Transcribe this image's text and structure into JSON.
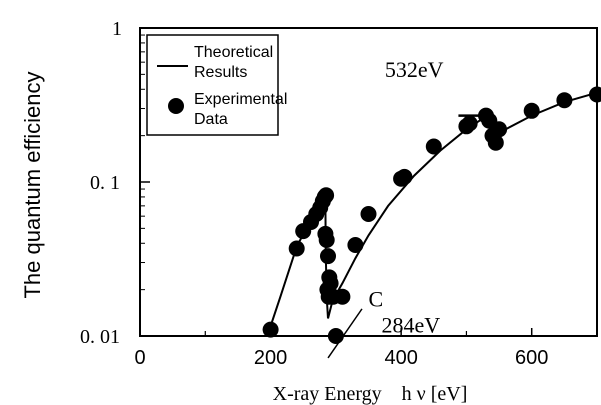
{
  "chart_data": {
    "type": "scatter",
    "xlabel": "X-ray Energy　h ν  [eV]",
    "ylabel": "The quantum efficiency",
    "x_axis": {
      "min": 0,
      "max": 700,
      "ticks": [
        0,
        200,
        400,
        600
      ],
      "tick_labels": [
        "0",
        "200",
        "400",
        "600"
      ]
    },
    "y_axis": {
      "scale": "log",
      "min": 0.01,
      "max": 1,
      "ticks": [
        0.01,
        0.1,
        1
      ],
      "tick_labels": [
        "0. 01",
        "0. 1",
        "1"
      ]
    },
    "grid": false,
    "legend": {
      "placement": "top-left",
      "entries": [
        {
          "symbol": "line",
          "label_lines": [
            "Theoretical",
            "Results"
          ]
        },
        {
          "symbol": "dot",
          "label_lines": [
            "Experimental",
            "Data"
          ]
        }
      ]
    },
    "series": [
      {
        "name": "Theoretical Results",
        "kind": "line",
        "segments": [
          {
            "x": [
              195,
              215,
              240,
              260,
              275,
              284
            ],
            "y": [
              0.01,
              0.018,
              0.038,
              0.055,
              0.068,
              0.078
            ]
          },
          {
            "x": [
              284,
              284.5,
              286,
              288
            ],
            "y": [
              0.078,
              0.036,
              0.018,
              0.013
            ]
          },
          {
            "x": [
              288,
              295,
              310,
              330,
              350,
              380,
              420,
              460,
              500,
              532
            ],
            "y": [
              0.013,
              0.017,
              0.022,
              0.032,
              0.045,
              0.07,
              0.11,
              0.16,
              0.22,
              0.27
            ]
          },
          {
            "x": [
              532,
              535,
              540
            ],
            "y": [
              0.27,
              0.24,
              0.2
            ]
          },
          {
            "x": [
              540,
              560,
              600,
              650,
              700
            ],
            "y": [
              0.2,
              0.22,
              0.27,
              0.33,
              0.38
            ]
          }
        ]
      },
      {
        "name": "Experimental Data",
        "kind": "scatter",
        "x": [
          200,
          240,
          250,
          262,
          270,
          276,
          280,
          283,
          285,
          284,
          286,
          288,
          287,
          290,
          292,
          289,
          296,
          300,
          310,
          330,
          350,
          400,
          405,
          450,
          500,
          505,
          530,
          535,
          540,
          545,
          550,
          600,
          650,
          700
        ],
        "y": [
          0.011,
          0.037,
          0.048,
          0.055,
          0.062,
          0.068,
          0.075,
          0.08,
          0.082,
          0.046,
          0.042,
          0.033,
          0.02,
          0.024,
          0.022,
          0.018,
          0.018,
          0.01,
          0.018,
          0.039,
          0.062,
          0.105,
          0.108,
          0.17,
          0.23,
          0.24,
          0.27,
          0.25,
          0.2,
          0.18,
          0.22,
          0.29,
          0.34,
          0.37
        ]
      }
    ],
    "annotations": [
      {
        "text": "532eV",
        "x": 375,
        "y": 0.48
      },
      {
        "text": "C",
        "x": 350,
        "y": 0.0155
      },
      {
        "text": "284eV",
        "x": 370,
        "y": 0.0105
      }
    ],
    "markers": [
      {
        "kind": "edge-bracket",
        "x": 500,
        "y_top": 0.27,
        "y_bottom": 0.225
      }
    ],
    "pointer": {
      "from": [
        340,
        0.015
      ],
      "to": [
        288,
        0.0072
      ]
    }
  }
}
